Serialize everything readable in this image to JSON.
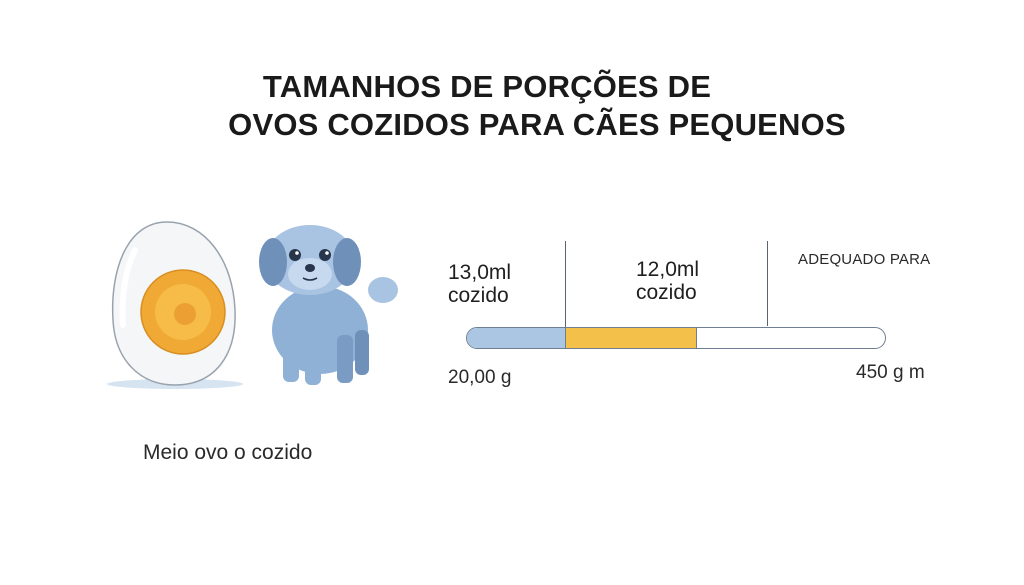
{
  "title": {
    "line1": "TAMANHOS DE PORÇÕES DE",
    "line2": "OVOS COZIDOS PARA CÃES PEQUENOS"
  },
  "illustration": {
    "caption": "Meio ovo o cozido",
    "egg_icon": "boiled-egg-half",
    "dog_icon": "small-dog"
  },
  "scale": {
    "segment1": {
      "amount": "13,0ml",
      "unit": "cozido"
    },
    "segment2": {
      "amount": "12,0ml",
      "unit": "cozido"
    },
    "suitable_label": "ADEQUADO PARA",
    "min_label": "20,00 g",
    "max_label": "450 g m"
  },
  "colors": {
    "segment1": "#aac6e2",
    "segment2": "#f3c04a",
    "dog": "#8fb1d6",
    "yolk": "#f3b13a"
  }
}
